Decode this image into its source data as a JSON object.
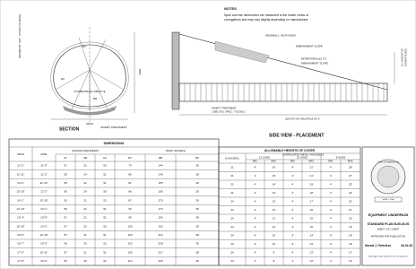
{
  "side_label": "DRAWN BY SHT - STATE OF WASH.",
  "notes": {
    "title": "NOTES",
    "lines": [
      "Span and rise dimensions are measured to the inside crests of",
      "corrugations and may vary slightly depending on manufacturer."
    ]
  },
  "section": {
    "title": "SECTION",
    "labels": [
      "RT",
      "RC",
      "RB",
      "RISE",
      "SYMMETRICAL ABOUT ℄",
      "SPAN",
      "INVERT TREATMENT"
    ]
  },
  "side_view": {
    "title": "SIDE VIEW - PLACEMENT",
    "labels": [
      "HEADWALL - BOTH ENDS",
      "EMBANKMENT SLOPE",
      "MITER PARALLEL TO",
      "EMBANKMENT SLOPE",
      "INVERT TREATMENT",
      "( SEE STD. SPEC. 7-02.3(6) )",
      "LENGTH IN A MULTIPLE OF 2'",
      "H = HEIGHT OF",
      "COVER PLACE"
    ]
  },
  "dimensions_table": {
    "title": "DIMENSIONS",
    "group_headers": [
      "ANGLES (DEGREES)",
      "RADII (INCHES)"
    ],
    "headers": [
      "SPAN",
      "RISE",
      "AT",
      "AB",
      "AC",
      "RT",
      "RB",
      "RC"
    ],
    "rows": [
      [
        "12'-2\"",
        "11'-0\"",
        "57",
        "22",
        "52",
        "74",
        "144",
        "28"
      ],
      [
        "12'-11\"",
        "11'-2\"",
        "55",
        "24",
        "51",
        "80",
        "145",
        "28"
      ],
      [
        "13'-2\"",
        "11'-10\"",
        "56",
        "22",
        "51",
        "81",
        "155",
        "28"
      ],
      [
        "13'-10\"",
        "12'-2\"",
        "56",
        "24",
        "50",
        "86",
        "156",
        "28"
      ],
      [
        "14'-1\"",
        "12'-10\"",
        "55",
        "21",
        "52",
        "87",
        "175",
        "28"
      ],
      [
        "14'-10\"",
        "13'-1\"",
        "56",
        "22",
        "51",
        "93",
        "173",
        "28"
      ],
      [
        "15'-4\"",
        "13'-8\"",
        "57",
        "21",
        "51",
        "95",
        "193",
        "28"
      ],
      [
        "15'-10\"",
        "14'-2\"",
        "57",
        "22",
        "50",
        "100",
        "192",
        "28"
      ],
      [
        "16'-5\"",
        "14'-10\"",
        "57",
        "21",
        "51",
        "103",
        "212",
        "28"
      ],
      [
        "16'-7\"",
        "15'-5\"",
        "56",
        "20",
        "52",
        "103",
        "228",
        "28"
      ],
      [
        "17'-3\"",
        "15'-11\"",
        "57",
        "21",
        "51",
        "109",
        "227",
        "28"
      ],
      [
        "17'-8\"",
        "16'-6\"",
        "56",
        "20",
        "52",
        "110",
        "245",
        "28"
      ]
    ]
  },
  "cover_table": {
    "title": "ALLOWABLE HEIGHTS OF COVER",
    "subtitle": "CORRUGATED METAL THICKNESS",
    "gages": [
      "12 GAGE",
      "10 GAGE",
      "8 GAGE"
    ],
    "first_header": "B (INCHES)",
    "min": "MIN.",
    "max": "MAX.",
    "rows": [
      [
        "21",
        "4'",
        "16'",
        "4'",
        "22'",
        "4'",
        "28'"
      ],
      [
        "21",
        "4'",
        "15'",
        "4'",
        "21'",
        "4'",
        "27'"
      ],
      [
        "21",
        "4'",
        "14'",
        "4'",
        "19'",
        "4'",
        "25'"
      ],
      [
        "21",
        "4'",
        "13'",
        "4'",
        "18'",
        "4'",
        "24'"
      ],
      [
        "24",
        "4'",
        "13'",
        "4'",
        "17'",
        "4'",
        "22'"
      ],
      [
        "24",
        "4'",
        "12'",
        "4'",
        "16'",
        "4'",
        "21'"
      ],
      [
        "24",
        "4'",
        "11'",
        "4'",
        "15'",
        "4'",
        "20'"
      ],
      [
        "24",
        "4'",
        "11'",
        "4'",
        "15'",
        "4'",
        "19'"
      ],
      [
        "24",
        "4'",
        "10'",
        "4'",
        "14'",
        "4'",
        "18'"
      ],
      [
        "24",
        "4'",
        "10'",
        "4'",
        "13'",
        "4'",
        "18'"
      ],
      [
        "24",
        "4'",
        "9'",
        "4'",
        "13'",
        "4'",
        "17'"
      ],
      [
        "24",
        "4'",
        "9'",
        "4'",
        "12'",
        "4'",
        "16'"
      ]
    ]
  },
  "title_block": {
    "seal": "STATE OF WASHINGTON",
    "seal_date": "JUNE 1, 2006",
    "title": "EQUIPMENT UNDERPASS",
    "plan": "STANDARD PLAN B-65.40-00",
    "sheet": "SHEET 1 OF 1 SHEET",
    "approved": "APPROVED FOR PUBLICATION",
    "signer": "Harold J. Peterfeso",
    "date": "06-01-06",
    "agency": "Washington State Department of Transportation"
  }
}
